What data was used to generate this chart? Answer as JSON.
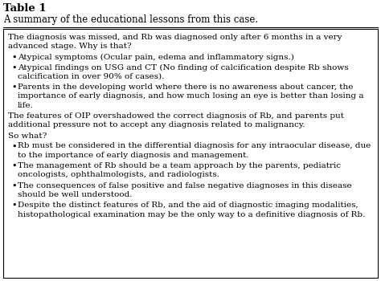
{
  "title": "Table 1",
  "subtitle": "A summary of the educational lessons from this case.",
  "background_color": "#ffffff",
  "border_color": "#000000",
  "title_color": "#000000",
  "text_color": "#000000",
  "font_size": 7.5,
  "title_font_size": 9.5,
  "subtitle_font_size": 8.5,
  "paragraphs": [
    {
      "type": "text",
      "content": "The diagnosis was missed, and Rb was diagnosed only after 6 months in a very\nadvanced stage. Why is that?"
    },
    {
      "type": "bullet",
      "content": "Atypical symptoms (Ocular pain, edema and inflammatory signs.)"
    },
    {
      "type": "bullet",
      "content": "Atypical findings on USG and CT (No finding of calcification despite Rb shows\ncalcification in over 90% of cases)."
    },
    {
      "type": "bullet",
      "content": "Parents in the developing world where there is no awareness about cancer, the\nimportance of early diagnosis, and how much losing an eye is better than losing a\nlife."
    },
    {
      "type": "text",
      "content": "The features of OIP overshadowed the correct diagnosis of Rb, and parents put\nadditional pressure not to accept any diagnosis related to malignancy."
    },
    {
      "type": "text",
      "content": "So what?"
    },
    {
      "type": "bullet",
      "content": "Rb must be considered in the differential diagnosis for any intraocular disease, due\nto the importance of early diagnosis and management."
    },
    {
      "type": "bullet",
      "content": "The management of Rb should be a team approach by the parents, pediatric\noncologists, ophthalmologists, and radiologists."
    },
    {
      "type": "bullet",
      "content": "The consequences of false positive and false negative diagnoses in this disease\nshould be well understood."
    },
    {
      "type": "bullet",
      "content": "Despite the distinct features of Rb, and the aid of diagnostic imaging modalities,\nhistopathological examination may be the only way to a definitive diagnosis of Rb."
    }
  ]
}
